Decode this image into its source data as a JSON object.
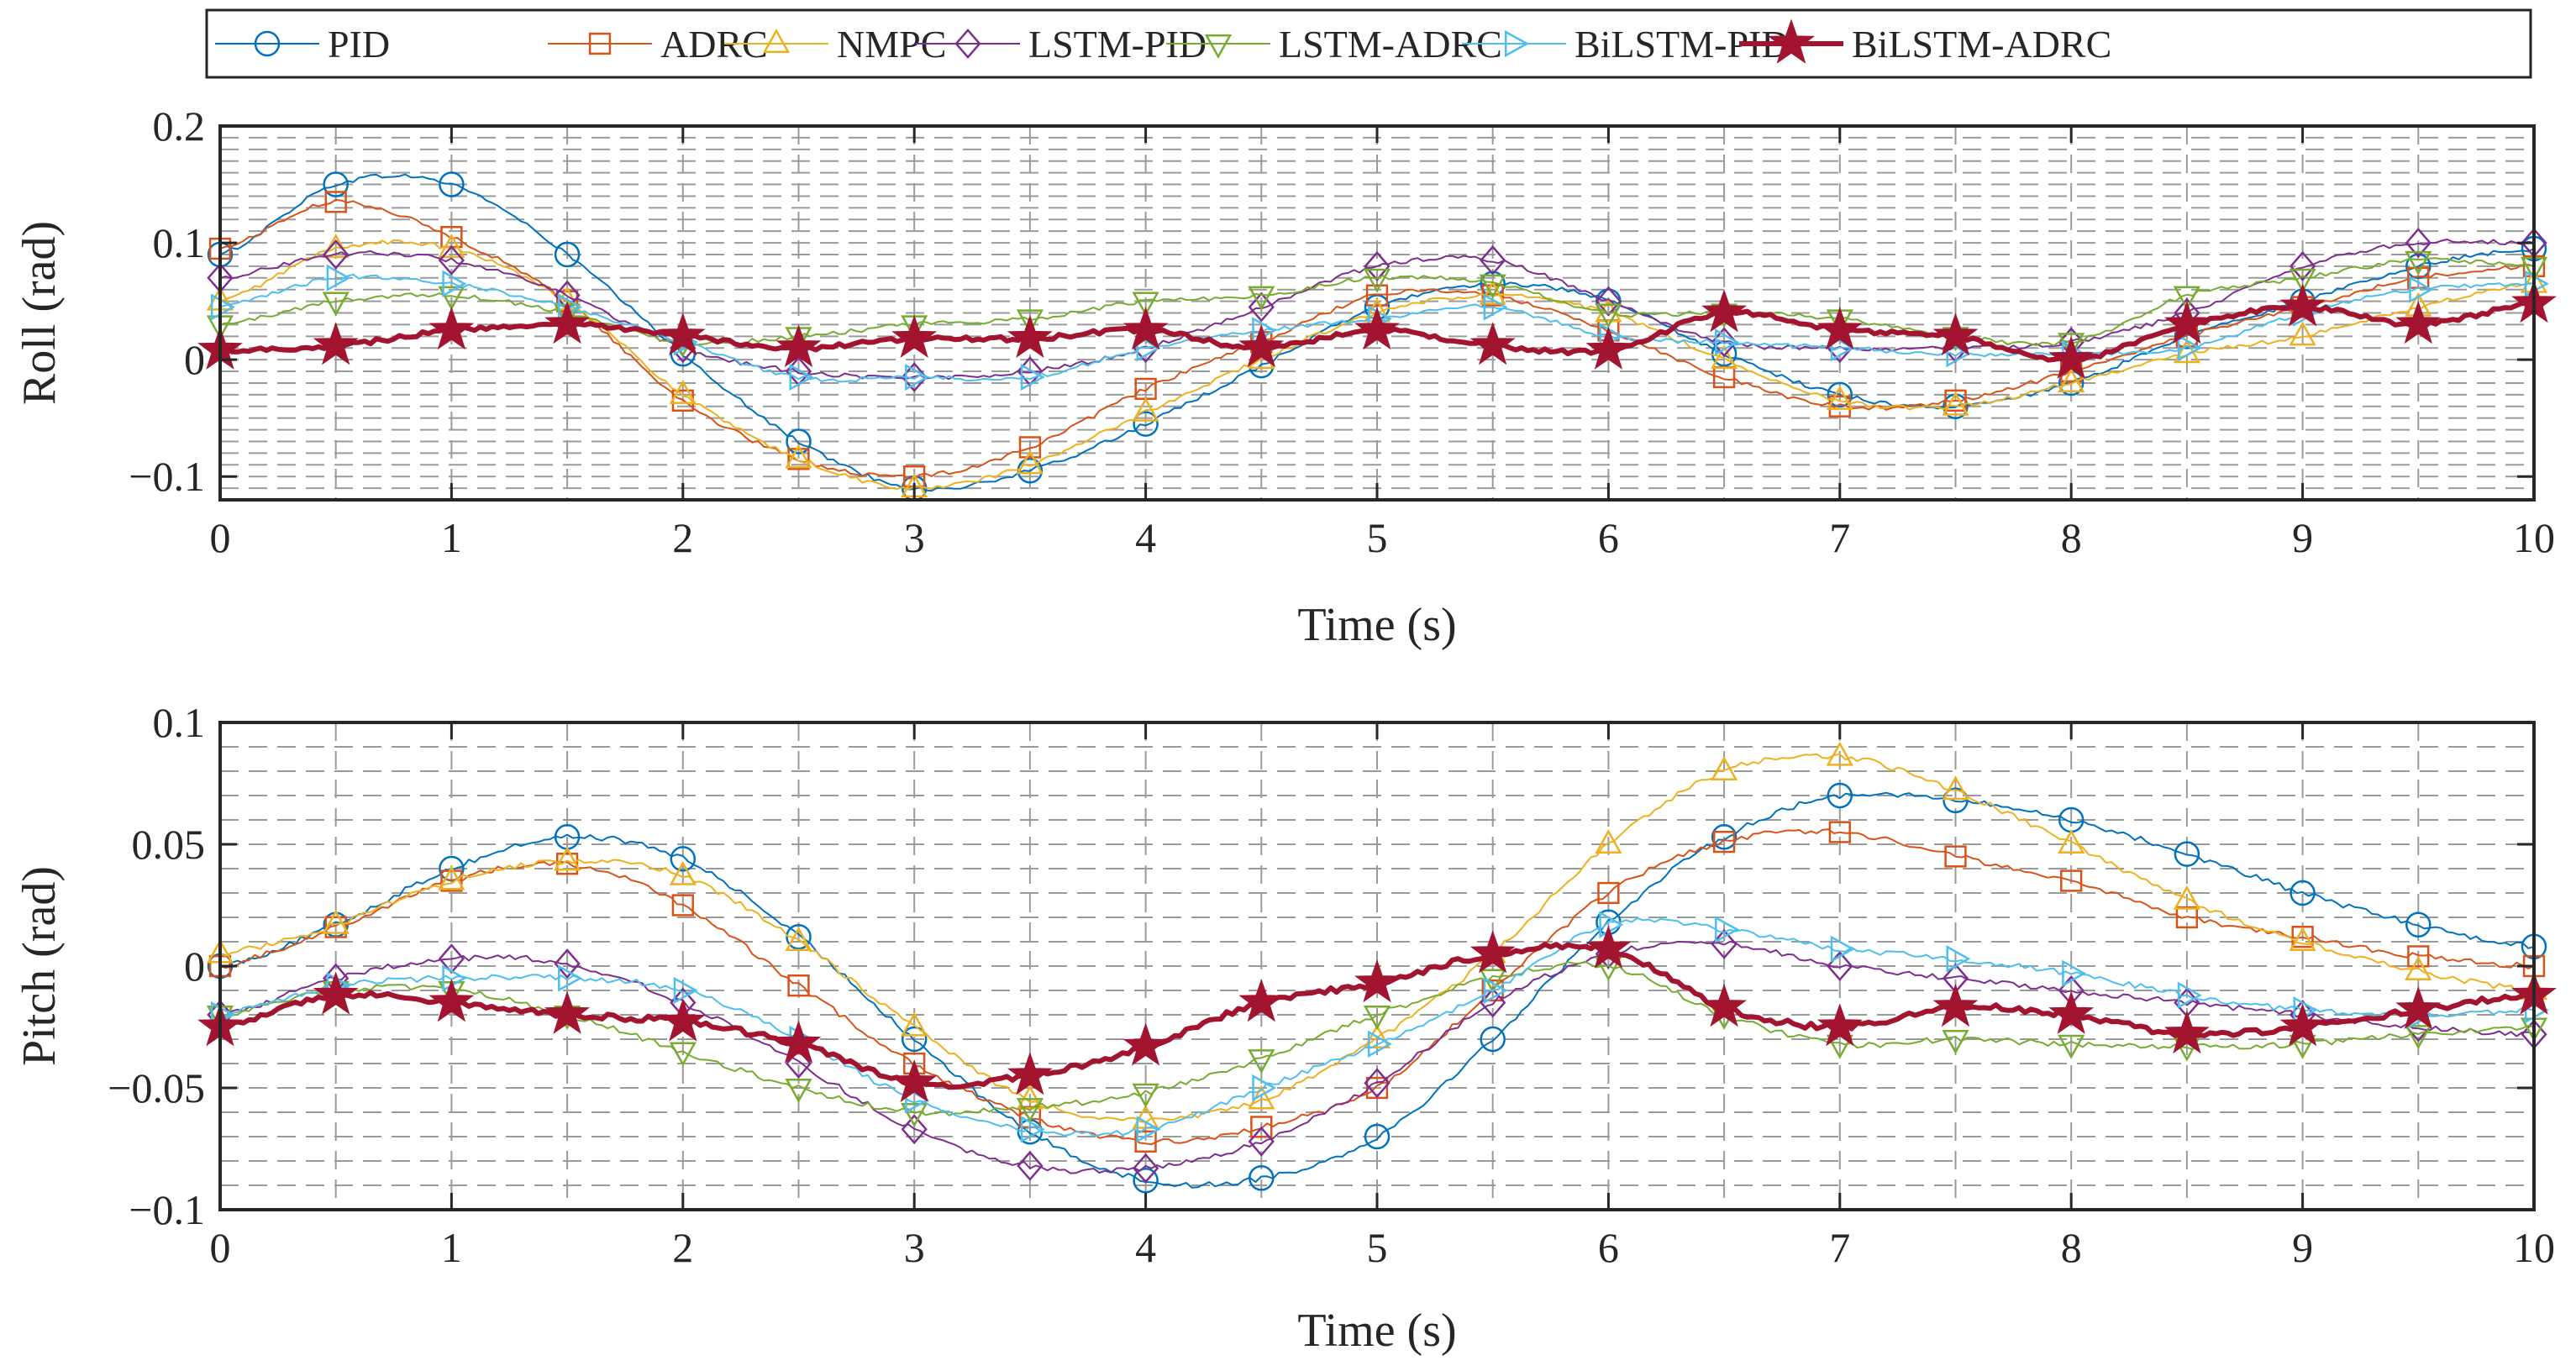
{
  "legend": {
    "location": "top-center",
    "orientation": "horizontal"
  },
  "line_styles": [
    {
      "name": "PID",
      "color": "#0072BD",
      "marker": "circle",
      "width": 2
    },
    {
      "name": "ADRC",
      "color": "#D95319",
      "marker": "square",
      "width": 2
    },
    {
      "name": "NMPC",
      "color": "#EDB120",
      "marker": "triangle-up",
      "width": 2
    },
    {
      "name": "LSTM-PID",
      "color": "#7E2F8E",
      "marker": "diamond",
      "width": 2
    },
    {
      "name": "LSTM-ADRC",
      "color": "#77AC30",
      "marker": "triangle-down",
      "width": 2
    },
    {
      "name": "BiLSTM-PID",
      "color": "#4DBEEE",
      "marker": "triangle-right",
      "width": 2
    },
    {
      "name": "BiLSTM-ADRC",
      "color": "#A2142F",
      "marker": "star",
      "width": 6
    }
  ],
  "chart_data": [
    {
      "type": "line",
      "xlabel": "Time (s)",
      "ylabel": "Roll (rad)",
      "xlim": [
        0,
        10
      ],
      "ylim": [
        -0.12,
        0.2
      ],
      "x_ticks": [
        0,
        1,
        2,
        3,
        4,
        5,
        6,
        7,
        8,
        9,
        10
      ],
      "y_ticks": [
        {
          "value": -0.1,
          "label": "−0.1"
        },
        {
          "value": 0,
          "label": "0"
        },
        {
          "value": 0.1,
          "label": "0.1"
        },
        {
          "value": 0.2,
          "label": "0.2"
        }
      ],
      "grid": "on (dashed major and minor)",
      "series": [
        {
          "name": "PID",
          "x": [
            0,
            0.5,
            1,
            1.5,
            2,
            2.5,
            3,
            3.5,
            4,
            4.5,
            5,
            5.5,
            6,
            6.5,
            7,
            7.5,
            8,
            8.5,
            9,
            9.5,
            10
          ],
          "values": [
            0.09,
            0.15,
            0.15,
            0.09,
            0.005,
            -0.07,
            -0.11,
            -0.095,
            -0.055,
            -0.005,
            0.045,
            0.065,
            0.05,
            0.005,
            -0.03,
            -0.04,
            -0.02,
            0.02,
            0.05,
            0.08,
            0.095
          ]
        },
        {
          "name": "ADRC",
          "x": [
            0,
            0.5,
            1,
            1.5,
            2,
            2.5,
            3,
            3.5,
            4,
            4.5,
            5,
            5.5,
            6,
            6.5,
            7,
            7.5,
            8,
            8.5,
            9,
            9.5,
            10
          ],
          "values": [
            0.095,
            0.135,
            0.105,
            0.05,
            -0.035,
            -0.085,
            -0.1,
            -0.075,
            -0.025,
            0.015,
            0.055,
            0.055,
            0.025,
            -0.015,
            -0.04,
            -0.035,
            -0.01,
            0.02,
            0.045,
            0.07,
            0.08
          ]
        },
        {
          "name": "NMPC",
          "x": [
            0,
            0.5,
            1,
            1.5,
            2,
            2.5,
            3,
            3.5,
            4,
            4.5,
            5,
            5.5,
            6,
            6.5,
            7,
            7.5,
            8,
            8.5,
            9,
            9.5,
            10
          ],
          "values": [
            0.05,
            0.095,
            0.095,
            0.05,
            -0.03,
            -0.085,
            -0.11,
            -0.09,
            -0.045,
            0.0,
            0.04,
            0.055,
            0.04,
            0.0,
            -0.035,
            -0.04,
            -0.02,
            0.005,
            0.02,
            0.045,
            0.065
          ]
        },
        {
          "name": "LSTM-PID",
          "x": [
            0,
            0.5,
            1,
            1.5,
            2,
            2.5,
            3,
            3.5,
            4,
            4.5,
            5,
            5.5,
            6,
            6.5,
            7,
            7.5,
            8,
            8.5,
            9,
            9.5,
            10
          ],
          "values": [
            0.07,
            0.09,
            0.085,
            0.055,
            0.01,
            -0.01,
            -0.015,
            -0.01,
            0.01,
            0.045,
            0.08,
            0.085,
            0.05,
            0.015,
            0.01,
            0.01,
            0.015,
            0.04,
            0.08,
            0.1,
            0.1
          ]
        },
        {
          "name": "LSTM-ADRC",
          "x": [
            0,
            0.5,
            1,
            1.5,
            2,
            2.5,
            3,
            3.5,
            4,
            4.5,
            5,
            5.5,
            6,
            6.5,
            7,
            7.5,
            8,
            8.5,
            9,
            9.5,
            10
          ],
          "values": [
            0.03,
            0.05,
            0.055,
            0.04,
            0.015,
            0.02,
            0.03,
            0.035,
            0.05,
            0.055,
            0.07,
            0.065,
            0.04,
            0.04,
            0.035,
            0.02,
            0.015,
            0.055,
            0.07,
            0.085,
            0.08
          ]
        },
        {
          "name": "BiLSTM-PID",
          "x": [
            0,
            0.5,
            1,
            1.5,
            2,
            2.5,
            3,
            3.5,
            4,
            4.5,
            5,
            5.5,
            6,
            6.5,
            7,
            7.5,
            8,
            8.5,
            9,
            9.5,
            10
          ],
          "values": [
            0.045,
            0.07,
            0.065,
            0.045,
            0.015,
            -0.015,
            -0.015,
            -0.015,
            0.01,
            0.025,
            0.035,
            0.045,
            0.02,
            0.015,
            0.01,
            0.005,
            0.005,
            0.01,
            0.04,
            0.06,
            0.065
          ]
        },
        {
          "name": "BiLSTM-ADRC",
          "x": [
            0,
            0.5,
            1,
            1.5,
            2,
            2.5,
            3,
            3.5,
            4,
            4.5,
            5,
            5.5,
            6,
            6.5,
            7,
            7.5,
            8,
            8.5,
            9,
            9.5,
            10
          ],
          "values": [
            0.008,
            0.012,
            0.025,
            0.03,
            0.02,
            0.01,
            0.018,
            0.018,
            0.025,
            0.01,
            0.025,
            0.012,
            0.008,
            0.04,
            0.025,
            0.02,
            0.0,
            0.03,
            0.045,
            0.03,
            0.048
          ]
        }
      ]
    },
    {
      "type": "line",
      "xlabel": "Time (s)",
      "ylabel": "Pitch (rad)",
      "xlim": [
        0,
        10
      ],
      "ylim": [
        -0.1,
        0.1
      ],
      "x_ticks": [
        0,
        1,
        2,
        3,
        4,
        5,
        6,
        7,
        8,
        9,
        10
      ],
      "y_ticks": [
        {
          "value": -0.1,
          "label": "−0.1"
        },
        {
          "value": -0.05,
          "label": "−0.05"
        },
        {
          "value": 0,
          "label": "0"
        },
        {
          "value": 0.05,
          "label": "0.05"
        },
        {
          "value": 0.1,
          "label": "0.1"
        }
      ],
      "grid": "on (dashed major and minor)",
      "series": [
        {
          "name": "PID",
          "x": [
            0,
            0.5,
            1,
            1.5,
            2,
            2.5,
            3,
            3.5,
            4,
            4.5,
            5,
            5.5,
            6,
            6.5,
            7,
            7.5,
            8,
            8.5,
            9,
            9.5,
            10
          ],
          "values": [
            0.0,
            0.017,
            0.04,
            0.053,
            0.044,
            0.012,
            -0.03,
            -0.068,
            -0.088,
            -0.087,
            -0.07,
            -0.03,
            0.018,
            0.053,
            0.07,
            0.068,
            0.06,
            0.046,
            0.03,
            0.017,
            0.008
          ]
        },
        {
          "name": "ADRC",
          "x": [
            0,
            0.5,
            1,
            1.5,
            2,
            2.5,
            3,
            3.5,
            4,
            4.5,
            5,
            5.5,
            6,
            6.5,
            7,
            7.5,
            8,
            8.5,
            9,
            9.5,
            10
          ],
          "values": [
            0.0,
            0.016,
            0.035,
            0.042,
            0.025,
            -0.008,
            -0.04,
            -0.062,
            -0.072,
            -0.066,
            -0.05,
            -0.01,
            0.03,
            0.051,
            0.055,
            0.045,
            0.035,
            0.02,
            0.012,
            0.004,
            0.0
          ]
        },
        {
          "name": "NMPC",
          "x": [
            0,
            0.5,
            1,
            1.5,
            2,
            2.5,
            3,
            3.5,
            4,
            4.5,
            5,
            5.5,
            6,
            6.5,
            7,
            7.5,
            8,
            8.5,
            9,
            9.5,
            10
          ],
          "values": [
            0.005,
            0.017,
            0.035,
            0.043,
            0.037,
            0.01,
            -0.025,
            -0.055,
            -0.063,
            -0.055,
            -0.03,
            0.005,
            0.05,
            0.08,
            0.086,
            0.072,
            0.05,
            0.027,
            0.01,
            -0.002,
            -0.01
          ]
        },
        {
          "name": "LSTM-PID",
          "x": [
            0,
            0.5,
            1,
            1.5,
            2,
            2.5,
            3,
            3.5,
            4,
            4.5,
            5,
            5.5,
            6,
            6.5,
            7,
            7.5,
            8,
            8.5,
            9,
            9.5,
            10
          ],
          "values": [
            -0.02,
            -0.005,
            0.003,
            0.001,
            -0.015,
            -0.04,
            -0.067,
            -0.082,
            -0.083,
            -0.072,
            -0.048,
            -0.015,
            0.005,
            0.009,
            0.0,
            -0.005,
            -0.01,
            -0.015,
            -0.02,
            -0.025,
            -0.028
          ]
        },
        {
          "name": "LSTM-ADRC",
          "x": [
            0,
            0.5,
            1,
            1.5,
            2,
            2.5,
            3,
            3.5,
            4,
            4.5,
            5,
            5.5,
            6,
            6.5,
            7,
            7.5,
            8,
            8.5,
            9,
            9.5,
            10
          ],
          "values": [
            -0.02,
            -0.01,
            -0.01,
            -0.02,
            -0.035,
            -0.05,
            -0.06,
            -0.058,
            -0.052,
            -0.038,
            -0.02,
            -0.005,
            0.0,
            -0.02,
            -0.032,
            -0.03,
            -0.032,
            -0.033,
            -0.032,
            -0.028,
            -0.025
          ]
        },
        {
          "name": "BiLSTM-PID",
          "x": [
            0,
            0.5,
            1,
            1.5,
            2,
            2.5,
            3,
            3.5,
            4,
            4.5,
            5,
            5.5,
            6,
            6.5,
            7,
            7.5,
            8,
            8.5,
            9,
            9.5,
            10
          ],
          "values": [
            -0.02,
            -0.008,
            -0.005,
            -0.005,
            -0.01,
            -0.03,
            -0.055,
            -0.067,
            -0.067,
            -0.05,
            -0.032,
            -0.01,
            0.017,
            0.015,
            0.007,
            0.003,
            -0.003,
            -0.012,
            -0.018,
            -0.02,
            -0.018
          ]
        },
        {
          "name": "BiLSTM-ADRC",
          "x": [
            0,
            0.5,
            1,
            1.5,
            2,
            2.5,
            3,
            3.5,
            4,
            4.5,
            5,
            5.5,
            6,
            6.5,
            7,
            7.5,
            8,
            8.5,
            9,
            9.5,
            10
          ],
          "values": [
            -0.025,
            -0.012,
            -0.015,
            -0.02,
            -0.023,
            -0.032,
            -0.048,
            -0.045,
            -0.033,
            -0.015,
            -0.007,
            0.005,
            0.007,
            -0.017,
            -0.025,
            -0.017,
            -0.02,
            -0.028,
            -0.025,
            -0.018,
            -0.012
          ]
        }
      ]
    }
  ]
}
